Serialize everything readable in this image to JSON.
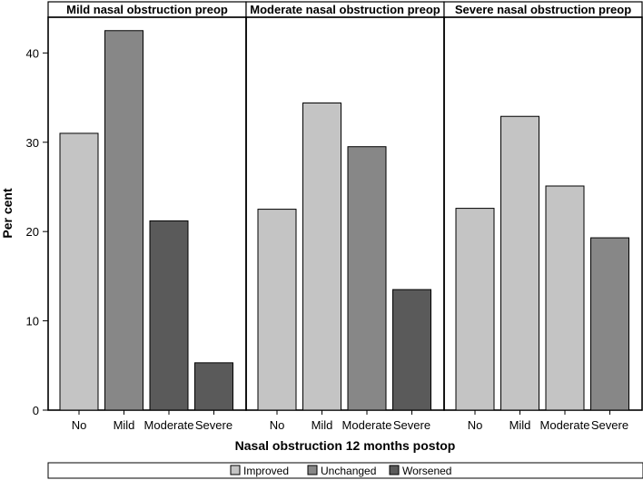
{
  "chart_data": {
    "type": "bar",
    "ylabel": "Per cent",
    "xlabel": "Nasal obstruction 12 months postop",
    "ylim": [
      0,
      44
    ],
    "yticks": [
      0,
      10,
      20,
      30,
      40
    ],
    "categories": [
      "No",
      "Mild",
      "Moderate",
      "Severe"
    ],
    "panels": [
      {
        "title": "Mild nasal obstruction preop",
        "values": [
          31.0,
          42.5,
          21.2,
          5.3
        ],
        "status": [
          "Improved",
          "Unchanged",
          "Worsened",
          "Worsened"
        ]
      },
      {
        "title": "Moderate nasal obstruction preop",
        "values": [
          22.5,
          34.4,
          29.5,
          13.5
        ],
        "status": [
          "Improved",
          "Improved",
          "Unchanged",
          "Worsened"
        ]
      },
      {
        "title": "Severe nasal obstruction preop",
        "values": [
          22.6,
          32.9,
          25.1,
          19.3
        ],
        "status": [
          "Improved",
          "Improved",
          "Improved",
          "Unchanged"
        ]
      }
    ],
    "legend": {
      "position": "bottom",
      "items": [
        {
          "label": "Improved",
          "color": "#c4c4c4"
        },
        {
          "label": "Unchanged",
          "color": "#878787"
        },
        {
          "label": "Worsened",
          "color": "#5a5a5a"
        }
      ]
    }
  }
}
